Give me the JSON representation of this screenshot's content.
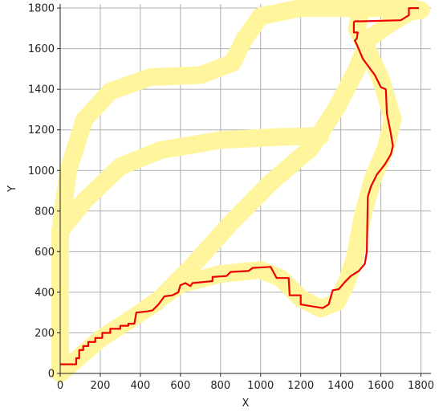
{
  "chart_data": {
    "type": "line",
    "title": "",
    "xlabel": "X",
    "ylabel": "Y",
    "xlim": [
      0,
      1850
    ],
    "ylim": [
      0,
      1820
    ],
    "grid": true,
    "xticks": [
      0,
      200,
      400,
      600,
      800,
      1000,
      1200,
      1400,
      1600,
      1800
    ],
    "yticks": [
      0,
      200,
      400,
      600,
      800,
      1000,
      1200,
      1400,
      1600,
      1800
    ],
    "colors": {
      "track": "#fff59d",
      "path": "#ee0000",
      "grid": "#b0b0b0",
      "axis": "#222222"
    },
    "series": [
      {
        "role": "track-outer-loop",
        "points": [
          [
            0,
            0
          ],
          [
            0,
            300
          ],
          [
            0,
            700
          ],
          [
            40,
            1000
          ],
          [
            120,
            1250
          ],
          [
            250,
            1390
          ],
          [
            450,
            1460
          ],
          [
            700,
            1470
          ],
          [
            860,
            1530
          ],
          [
            920,
            1650
          ],
          [
            1000,
            1760
          ],
          [
            1200,
            1800
          ],
          [
            1500,
            1800
          ],
          [
            1740,
            1800
          ],
          [
            1800,
            1790
          ]
        ]
      },
      {
        "role": "track-inner-loop",
        "points": [
          [
            0,
            700
          ],
          [
            120,
            850
          ],
          [
            300,
            1020
          ],
          [
            500,
            1100
          ],
          [
            800,
            1150
          ],
          [
            1100,
            1165
          ],
          [
            1300,
            1170
          ]
        ]
      },
      {
        "role": "track-diagonal",
        "points": [
          [
            0,
            0
          ],
          [
            200,
            170
          ],
          [
            480,
            350
          ],
          [
            650,
            520
          ],
          [
            850,
            740
          ],
          [
            1050,
            940
          ],
          [
            1250,
            1110
          ],
          [
            1380,
            1310
          ],
          [
            1480,
            1500
          ],
          [
            1540,
            1650
          ],
          [
            1640,
            1720
          ],
          [
            1740,
            1780
          ],
          [
            1800,
            1790
          ]
        ]
      },
      {
        "role": "track-bottom-loop",
        "points": [
          [
            400,
            300
          ],
          [
            600,
            440
          ],
          [
            800,
            490
          ],
          [
            1000,
            510
          ],
          [
            1100,
            470
          ],
          [
            1200,
            370
          ],
          [
            1300,
            320
          ],
          [
            1380,
            350
          ],
          [
            1430,
            450
          ],
          [
            1470,
            570
          ],
          [
            1510,
            780
          ],
          [
            1560,
            960
          ],
          [
            1620,
            1100
          ],
          [
            1660,
            1250
          ],
          [
            1600,
            1450
          ],
          [
            1530,
            1600
          ],
          [
            1480,
            1700
          ],
          [
            1500,
            1780
          ]
        ]
      },
      {
        "role": "red-path",
        "points": [
          [
            0,
            45
          ],
          [
            80,
            45
          ],
          [
            80,
            75
          ],
          [
            95,
            75
          ],
          [
            95,
            115
          ],
          [
            115,
            115
          ],
          [
            115,
            135
          ],
          [
            140,
            135
          ],
          [
            140,
            155
          ],
          [
            175,
            155
          ],
          [
            175,
            175
          ],
          [
            210,
            175
          ],
          [
            210,
            200
          ],
          [
            250,
            200
          ],
          [
            250,
            220
          ],
          [
            300,
            220
          ],
          [
            300,
            235
          ],
          [
            340,
            235
          ],
          [
            340,
            245
          ],
          [
            370,
            245
          ],
          [
            380,
            300
          ],
          [
            430,
            305
          ],
          [
            460,
            310
          ],
          [
            490,
            340
          ],
          [
            520,
            380
          ],
          [
            560,
            385
          ],
          [
            590,
            400
          ],
          [
            600,
            435
          ],
          [
            625,
            445
          ],
          [
            650,
            430
          ],
          [
            660,
            445
          ],
          [
            760,
            455
          ],
          [
            760,
            475
          ],
          [
            830,
            480
          ],
          [
            850,
            500
          ],
          [
            940,
            505
          ],
          [
            960,
            520
          ],
          [
            1050,
            525
          ],
          [
            1080,
            470
          ],
          [
            1140,
            470
          ],
          [
            1145,
            385
          ],
          [
            1200,
            385
          ],
          [
            1200,
            340
          ],
          [
            1260,
            330
          ],
          [
            1310,
            322
          ],
          [
            1340,
            340
          ],
          [
            1360,
            410
          ],
          [
            1390,
            415
          ],
          [
            1420,
            450
          ],
          [
            1450,
            480
          ],
          [
            1490,
            505
          ],
          [
            1520,
            540
          ],
          [
            1530,
            600
          ],
          [
            1535,
            870
          ],
          [
            1550,
            920
          ],
          [
            1580,
            980
          ],
          [
            1620,
            1030
          ],
          [
            1650,
            1080
          ],
          [
            1660,
            1120
          ],
          [
            1650,
            1180
          ],
          [
            1630,
            1280
          ],
          [
            1625,
            1400
          ],
          [
            1600,
            1410
          ],
          [
            1570,
            1470
          ],
          [
            1510,
            1550
          ],
          [
            1480,
            1620
          ],
          [
            1470,
            1640
          ],
          [
            1480,
            1650
          ],
          [
            1485,
            1680
          ],
          [
            1465,
            1680
          ],
          [
            1465,
            1730
          ],
          [
            1470,
            1735
          ],
          [
            1505,
            1735
          ],
          [
            1700,
            1740
          ],
          [
            1740,
            1765
          ],
          [
            1740,
            1800
          ],
          [
            1790,
            1800
          ]
        ]
      }
    ]
  }
}
